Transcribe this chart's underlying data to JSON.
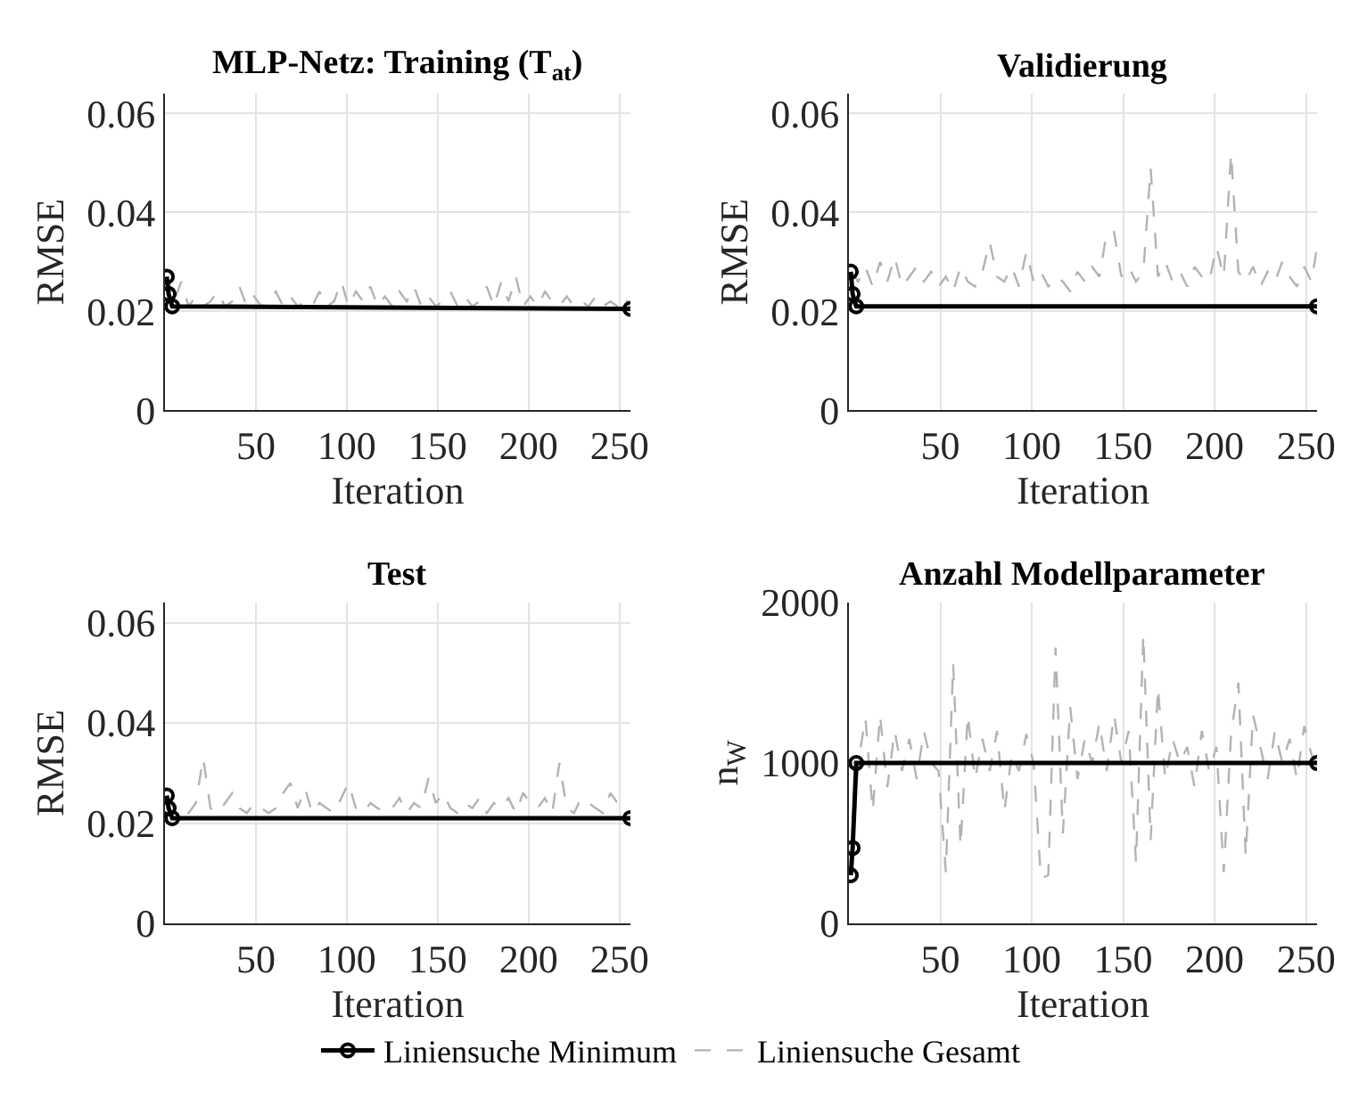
{
  "chart_data": [
    {
      "type": "line",
      "title": "MLP-Netz: Training (T$_{at}$)",
      "xlabel": "Iteration",
      "ylabel": "RMSE",
      "xlim": [
        0,
        256
      ],
      "xticks": [
        50,
        100,
        150,
        200,
        250
      ],
      "ylim": [
        0,
        0.064
      ],
      "yticks": [
        0,
        0.02,
        0.04,
        0.06
      ],
      "grid": true,
      "legend": "bottom",
      "series": [
        {
          "name": "Liniensuche Gesamt",
          "color": "#b3b3b3",
          "line_style": "dashed",
          "marker": "none",
          "x": [
            1,
            5,
            9,
            13,
            17,
            21,
            25,
            29,
            33,
            37,
            41,
            45,
            49,
            53,
            57,
            61,
            65,
            69,
            73,
            77,
            81,
            85,
            89,
            93,
            97,
            101,
            105,
            109,
            113,
            117,
            121,
            125,
            129,
            133,
            137,
            141,
            145,
            149,
            153,
            157,
            161,
            165,
            169,
            173,
            177,
            181,
            185,
            189,
            193,
            197,
            201,
            205,
            209,
            213,
            217,
            221,
            225,
            229,
            233,
            237,
            241,
            245,
            249,
            253,
            256
          ],
          "values": [
            0.027,
            0.022,
            0.026,
            0.021,
            0.023,
            0.021,
            0.022,
            0.024,
            0.021,
            0.022,
            0.025,
            0.021,
            0.023,
            0.021,
            0.022,
            0.024,
            0.021,
            0.023,
            0.021,
            0.022,
            0.021,
            0.024,
            0.021,
            0.022,
            0.026,
            0.021,
            0.024,
            0.022,
            0.025,
            0.021,
            0.023,
            0.021,
            0.024,
            0.022,
            0.025,
            0.021,
            0.023,
            0.021,
            0.022,
            0.024,
            0.021,
            0.023,
            0.021,
            0.022,
            0.025,
            0.021,
            0.026,
            0.022,
            0.027,
            0.021,
            0.023,
            0.021,
            0.024,
            0.022,
            0.021,
            0.023,
            0.021,
            0.022,
            0.021,
            0.023,
            0.021,
            0.022,
            0.021,
            0.023,
            0.0205
          ]
        },
        {
          "name": "Liniensuche Minimum",
          "color": "#000000",
          "line_style": "solid",
          "marker": "circle",
          "x": [
            1,
            2,
            4,
            256
          ],
          "values": [
            0.027,
            0.0235,
            0.021,
            0.0205
          ]
        }
      ]
    },
    {
      "type": "line",
      "title": "Validierung",
      "xlabel": "Iteration",
      "ylabel": "RMSE",
      "xlim": [
        0,
        256
      ],
      "xticks": [
        50,
        100,
        150,
        200,
        250
      ],
      "ylim": [
        0,
        0.064
      ],
      "yticks": [
        0,
        0.02,
        0.04,
        0.06
      ],
      "grid": true,
      "legend": "bottom",
      "series": [
        {
          "name": "Liniensuche Gesamt",
          "color": "#b3b3b3",
          "line_style": "dashed",
          "marker": "none",
          "x": [
            1,
            5,
            9,
            13,
            17,
            21,
            25,
            29,
            33,
            37,
            41,
            45,
            49,
            53,
            57,
            61,
            65,
            69,
            73,
            77,
            81,
            85,
            89,
            93,
            97,
            101,
            105,
            109,
            113,
            117,
            121,
            125,
            129,
            133,
            137,
            141,
            145,
            149,
            153,
            157,
            161,
            165,
            169,
            173,
            177,
            181,
            185,
            189,
            193,
            197,
            201,
            205,
            209,
            213,
            217,
            221,
            225,
            229,
            233,
            237,
            241,
            245,
            249,
            253,
            256
          ],
          "values": [
            0.028,
            0.026,
            0.029,
            0.025,
            0.03,
            0.026,
            0.031,
            0.025,
            0.027,
            0.029,
            0.026,
            0.028,
            0.025,
            0.027,
            0.024,
            0.029,
            0.026,
            0.025,
            0.028,
            0.034,
            0.027,
            0.026,
            0.029,
            0.025,
            0.032,
            0.026,
            0.028,
            0.025,
            0.027,
            0.026,
            0.024,
            0.028,
            0.026,
            0.029,
            0.027,
            0.036,
            0.036,
            0.027,
            0.029,
            0.026,
            0.028,
            0.049,
            0.027,
            0.03,
            0.026,
            0.028,
            0.025,
            0.029,
            0.027,
            0.026,
            0.033,
            0.027,
            0.052,
            0.028,
            0.026,
            0.029,
            0.025,
            0.028,
            0.026,
            0.03,
            0.027,
            0.025,
            0.029,
            0.026,
            0.033
          ]
        },
        {
          "name": "Liniensuche Minimum",
          "color": "#000000",
          "line_style": "solid",
          "marker": "circle",
          "x": [
            1,
            2,
            4,
            256
          ],
          "values": [
            0.028,
            0.0235,
            0.021,
            0.021
          ]
        }
      ]
    },
    {
      "type": "line",
      "title": "Test",
      "xlabel": "Iteration",
      "ylabel": "RMSE",
      "xlim": [
        0,
        256
      ],
      "xticks": [
        50,
        100,
        150,
        200,
        250
      ],
      "ylim": [
        0,
        0.064
      ],
      "yticks": [
        0,
        0.02,
        0.04,
        0.06
      ],
      "grid": true,
      "legend": "bottom",
      "series": [
        {
          "name": "Liniensuche Gesamt",
          "color": "#b3b3b3",
          "line_style": "dashed",
          "marker": "none",
          "x": [
            1,
            5,
            9,
            13,
            17,
            21,
            25,
            29,
            33,
            37,
            41,
            45,
            49,
            53,
            57,
            61,
            65,
            69,
            73,
            77,
            81,
            85,
            89,
            93,
            97,
            101,
            105,
            109,
            113,
            117,
            121,
            125,
            129,
            133,
            137,
            141,
            145,
            149,
            153,
            157,
            161,
            165,
            169,
            173,
            177,
            181,
            185,
            189,
            193,
            197,
            201,
            205,
            209,
            213,
            217,
            221,
            225,
            229,
            233,
            237,
            241,
            245,
            249,
            253,
            256
          ],
          "values": [
            0.025,
            0.023,
            0.024,
            0.022,
            0.024,
            0.033,
            0.023,
            0.022,
            0.024,
            0.026,
            0.023,
            0.022,
            0.024,
            0.023,
            0.022,
            0.023,
            0.026,
            0.028,
            0.023,
            0.027,
            0.022,
            0.024,
            0.023,
            0.022,
            0.025,
            0.028,
            0.023,
            0.022,
            0.024,
            0.023,
            0.022,
            0.023,
            0.025,
            0.022,
            0.024,
            0.023,
            0.029,
            0.024,
            0.026,
            0.023,
            0.022,
            0.024,
            0.023,
            0.025,
            0.022,
            0.024,
            0.023,
            0.025,
            0.022,
            0.026,
            0.024,
            0.023,
            0.025,
            0.022,
            0.032,
            0.023,
            0.022,
            0.025,
            0.024,
            0.023,
            0.022,
            0.026,
            0.024,
            0.023,
            0.023
          ]
        },
        {
          "name": "Liniensuche Minimum",
          "color": "#000000",
          "line_style": "solid",
          "marker": "circle",
          "x": [
            1,
            2,
            4,
            256
          ],
          "values": [
            0.0255,
            0.023,
            0.021,
            0.021
          ]
        }
      ]
    },
    {
      "type": "line",
      "title": "Anzahl Modellparameter",
      "xlabel": "Iteration",
      "ylabel": "n$_{W}$",
      "xlim": [
        0,
        256
      ],
      "xticks": [
        50,
        100,
        150,
        200,
        250
      ],
      "ylim": [
        0,
        2000
      ],
      "yticks": [
        0,
        1000,
        2000
      ],
      "grid": true,
      "legend": "bottom",
      "series": [
        {
          "name": "Liniensuche Gesamt",
          "color": "#b3b3b3",
          "line_style": "dashed",
          "marker": "none",
          "x": [
            1,
            5,
            9,
            13,
            17,
            21,
            25,
            29,
            33,
            37,
            41,
            45,
            49,
            53,
            57,
            61,
            65,
            69,
            73,
            77,
            81,
            85,
            89,
            93,
            97,
            101,
            105,
            109,
            113,
            117,
            121,
            125,
            129,
            133,
            137,
            141,
            145,
            149,
            153,
            157,
            161,
            165,
            169,
            173,
            177,
            181,
            185,
            189,
            193,
            197,
            201,
            205,
            209,
            213,
            217,
            221,
            225,
            229,
            233,
            237,
            241,
            245,
            249,
            253,
            256
          ],
          "values": [
            300,
            1000,
            1280,
            700,
            1300,
            850,
            1200,
            950,
            1150,
            900,
            1200,
            1000,
            950,
            320,
            1620,
            480,
            1300,
            900,
            1150,
            950,
            1200,
            700,
            1050,
            950,
            1180,
            1000,
            280,
            300,
            1720,
            560,
            1350,
            900,
            1150,
            1000,
            1250,
            950,
            1300,
            1000,
            1200,
            380,
            1800,
            520,
            1470,
            900,
            1150,
            1000,
            1100,
            850,
            1200,
            950,
            1100,
            320,
            1180,
            1500,
            420,
            1300,
            1100,
            900,
            1200,
            1000,
            1150,
            900,
            1230,
            1050,
            1000
          ]
        },
        {
          "name": "Liniensuche Minimum",
          "color": "#000000",
          "line_style": "solid",
          "marker": "circle",
          "x": [
            1,
            2,
            4,
            256
          ],
          "values": [
            300,
            470,
            1000,
            1000
          ]
        }
      ]
    }
  ]
}
